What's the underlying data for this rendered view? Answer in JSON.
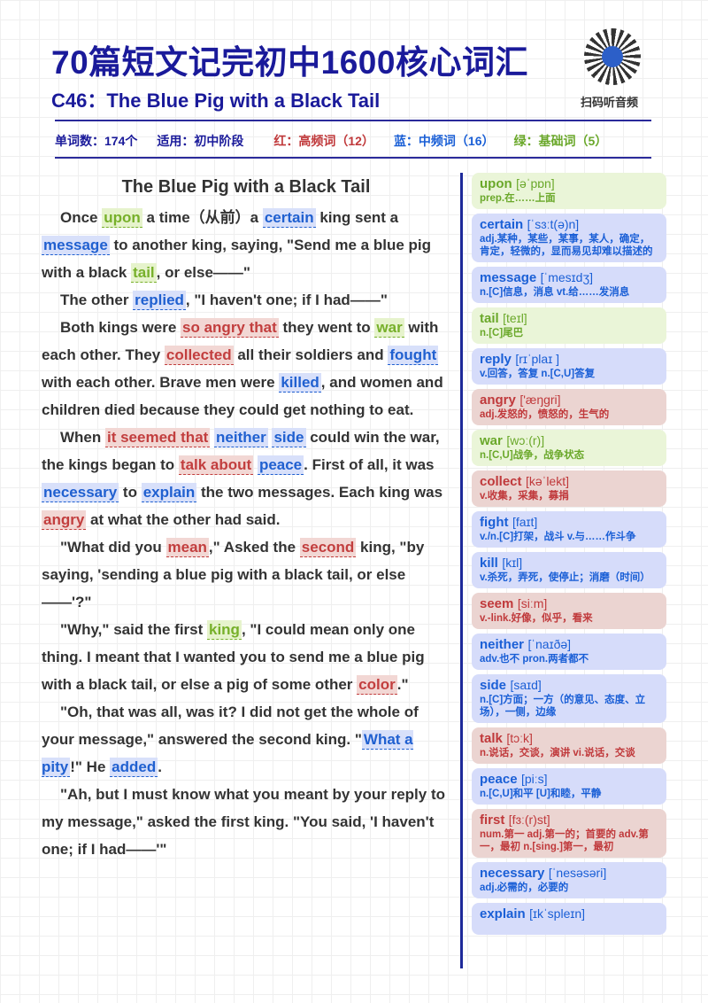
{
  "header": {
    "title": "70篇短文记完初中1600核心词汇",
    "subtitle": "C46：The Blue Pig with a Black Tail",
    "qr_label": "扫码听音频"
  },
  "meta": {
    "word_count": "单词数：174个",
    "level": "适用：初中阶段",
    "red": "红：高频词（12）",
    "blue": "蓝：中频词（16）",
    "green": "绿：基础词（5）"
  },
  "colors": {
    "red": "#c0393b",
    "blue": "#1a5fd6",
    "green": "#6aa82a",
    "navy": "#1a1a9a"
  },
  "story": {
    "title": "The Blue Pig with a Black Tail",
    "paragraphs": [
      [
        [
          "Once ",
          ""
        ],
        [
          "upon",
          "g"
        ],
        [
          " a time（从前）a ",
          ""
        ],
        [
          "certain",
          "b"
        ],
        [
          " king sent a ",
          ""
        ],
        [
          "message",
          "b"
        ],
        [
          " to another king, saying, \"Send me a blue pig with a black ",
          ""
        ],
        [
          "tail",
          "g"
        ],
        [
          ", or else——\"",
          ""
        ]
      ],
      [
        [
          "The other ",
          ""
        ],
        [
          "replied",
          "b"
        ],
        [
          ", \"I haven't one; if I had——\"",
          ""
        ]
      ],
      [
        [
          "Both kings were ",
          ""
        ],
        [
          "so angry that",
          "r"
        ],
        [
          " they went to ",
          ""
        ],
        [
          "war",
          "g"
        ],
        [
          " with each other. They ",
          ""
        ],
        [
          "collected",
          "r"
        ],
        [
          " all their soldiers and ",
          ""
        ],
        [
          "fought",
          "b"
        ],
        [
          " with each other. Brave men were ",
          ""
        ],
        [
          "killed",
          "b"
        ],
        [
          ", and women and children died because they could get nothing to eat.",
          ""
        ]
      ],
      [
        [
          "When ",
          ""
        ],
        [
          "it seemed that",
          "r"
        ],
        [
          " ",
          ""
        ],
        [
          "neither",
          "b"
        ],
        [
          " ",
          ""
        ],
        [
          "side",
          "b"
        ],
        [
          " could win the war, the kings began to ",
          ""
        ],
        [
          "talk about",
          "r"
        ],
        [
          " ",
          ""
        ],
        [
          "peace",
          "b"
        ],
        [
          ". First of all, it was ",
          ""
        ],
        [
          "necessary",
          "b"
        ],
        [
          " to ",
          ""
        ],
        [
          "explain",
          "b"
        ],
        [
          " the two messages. Each king was ",
          ""
        ],
        [
          "angry",
          "r"
        ],
        [
          " at what the other had said.",
          ""
        ]
      ],
      [
        [
          "\"What did you ",
          ""
        ],
        [
          "mean",
          "r"
        ],
        [
          ",\" Asked the ",
          ""
        ],
        [
          "second",
          "r"
        ],
        [
          " king, \"by saying, 'sending a blue pig with a black tail, or else——'?\"",
          ""
        ]
      ],
      [
        [
          "\"Why,\" said the first ",
          ""
        ],
        [
          "king",
          "g"
        ],
        [
          ", \"I could mean only one thing. I meant that I wanted you to send me a blue pig with a black tail, or else a pig of some other ",
          ""
        ],
        [
          "color",
          "r"
        ],
        [
          ".\"",
          ""
        ]
      ],
      [
        [
          "\"Oh, that was all, was it? I did not get the whole of your message,\" answered the second king. \"",
          ""
        ],
        [
          "What a pity",
          "b"
        ],
        [
          "!\" He ",
          ""
        ],
        [
          "added",
          "b"
        ],
        [
          ".",
          ""
        ]
      ],
      [
        [
          "\"Ah, but I must know what you meant by your reply to my message,\" asked the first king. \"You said, 'I haven't one; if I had——'\"",
          ""
        ]
      ]
    ]
  },
  "vocab": [
    {
      "word": "upon",
      "ph": "[əˈpɒn]",
      "def": "prep.在……上面",
      "c": "g"
    },
    {
      "word": "certain",
      "ph": "[ˈsɜːt(ə)n]",
      "def": "adj.某种，某些，某事，某人，确定，肯定，轻微的，显而易见却难以描述的",
      "c": "b"
    },
    {
      "word": "message",
      "ph": "[ˈmesɪdʒ]",
      "def": "n.[C]信息，消息 vt.给……发消息",
      "c": "b"
    },
    {
      "word": "tail",
      "ph": "[teɪl]",
      "def": "n.[C]尾巴",
      "c": "g"
    },
    {
      "word": "reply",
      "ph": "[rɪˈplaɪ ]",
      "def": "v.回答，答复 n.[C,U]答复",
      "c": "b"
    },
    {
      "word": "angry",
      "ph": "['æŋgri]",
      "def": "adj.发怒的，愤怒的，生气的",
      "c": "r"
    },
    {
      "word": "war",
      "ph": "[wɔː(r)]",
      "def": "n.[C,U]战争，战争状态",
      "c": "g"
    },
    {
      "word": "collect",
      "ph": "[kəˈlekt]",
      "def": "v.收集，采集，募捐",
      "c": "r"
    },
    {
      "word": "fight",
      "ph": "[faɪt]",
      "def": "v./n.[C]打架，战斗 v.与……作斗争",
      "c": "b"
    },
    {
      "word": "kill",
      "ph": "[kɪl]",
      "def": "v.杀死，弄死，使停止；消磨（时间）",
      "c": "b"
    },
    {
      "word": "seem",
      "ph": "[siːm]",
      "def": "v.-link.好像，似乎，看来",
      "c": "r"
    },
    {
      "word": "neither",
      "ph": "[ˈnaɪðə]",
      "def": "adv.也不 pron.两者都不",
      "c": "b"
    },
    {
      "word": "side",
      "ph": "[saɪd]",
      "def": "n.[C]方面；一方（的意见、态度、立场），一侧，边缘",
      "c": "b"
    },
    {
      "word": "talk",
      "ph": "[tɔːk]",
      "def": "n.说话，交谈，演讲 vi.说话，交谈",
      "c": "r"
    },
    {
      "word": "peace",
      "ph": "[piːs]",
      "def": "n.[C,U]和平 [U]和睦，平静",
      "c": "b"
    },
    {
      "word": "first",
      "ph": "[fɜː(r)st]",
      "def": "num.第一 adj.第一的；首要的 adv.第一，最初 n.[sing.]第一，最初",
      "c": "r"
    },
    {
      "word": "necessary",
      "ph": "[ˈnesəsəri]",
      "def": "adj.必需的，必要的",
      "c": "b"
    },
    {
      "word": "explain",
      "ph": "[ɪkˈspleɪn]",
      "def": "",
      "c": "b"
    }
  ]
}
